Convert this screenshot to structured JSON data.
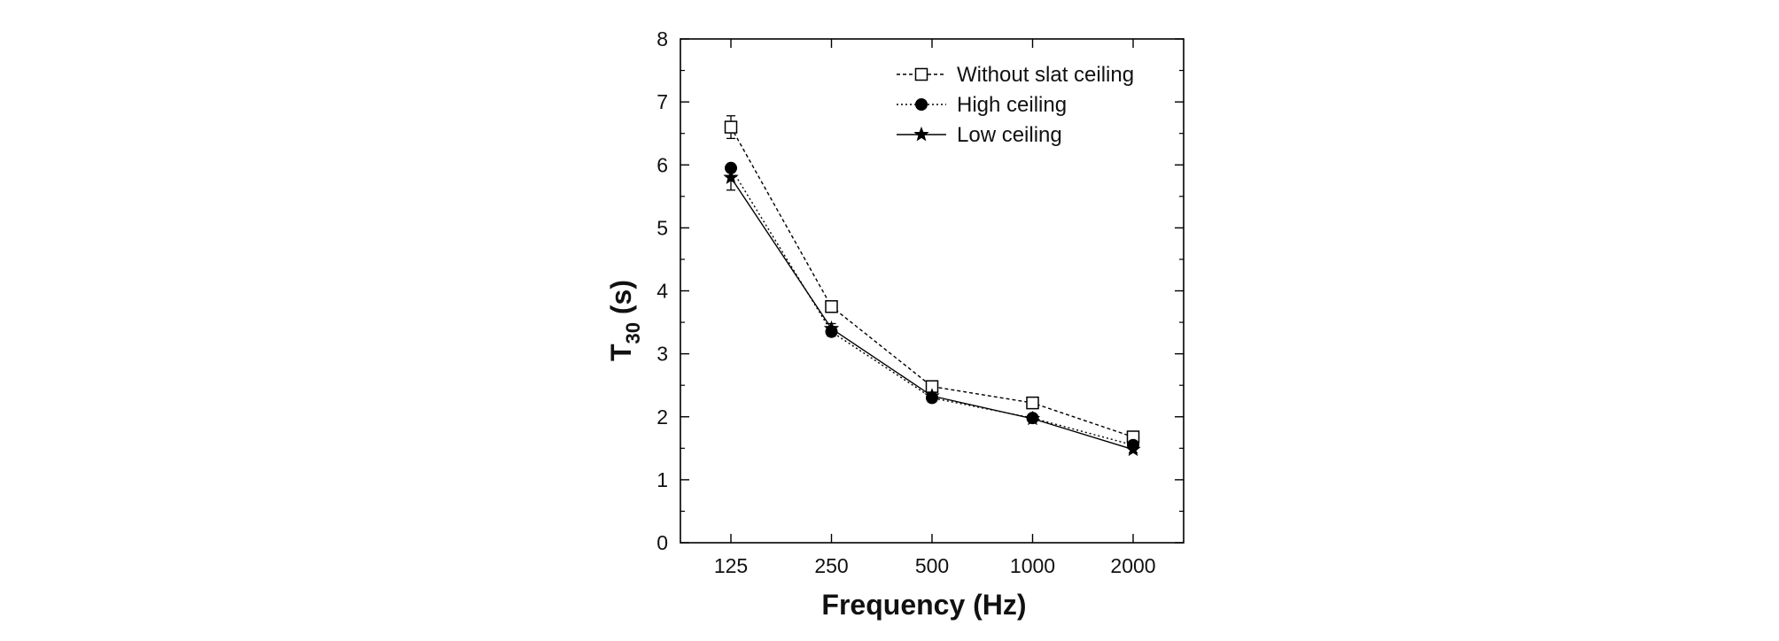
{
  "chart_data": {
    "type": "line",
    "x_axis": {
      "label": "Frequency (Hz)",
      "scale": "categorical",
      "categories": [
        "125",
        "250",
        "500",
        "1000",
        "2000"
      ]
    },
    "y_axis": {
      "label_main": "T",
      "label_sub": "30",
      "label_unit": "(s)",
      "ylim": [
        0,
        8
      ],
      "ticks": [
        "0",
        "1",
        "2",
        "3",
        "4",
        "5",
        "6",
        "7",
        "8"
      ],
      "minor_step": 0.5
    },
    "grid": false,
    "legend": {
      "placement": "top-right"
    },
    "series": [
      {
        "name": "Without slat ceiling",
        "marker": "open-square",
        "line_style": "dotted-dense",
        "color": "#000000",
        "values": [
          6.6,
          3.75,
          2.48,
          2.22,
          1.68
        ],
        "errors": [
          0.18,
          0.07,
          0.05,
          0.04,
          0.04
        ]
      },
      {
        "name": "High ceiling",
        "marker": "filled-circle",
        "line_style": "dotted",
        "color": "#000000",
        "values": [
          5.95,
          3.35,
          2.3,
          1.98,
          1.55
        ],
        "errors": [
          0.06,
          0.07,
          0.05,
          0.05,
          0.05
        ]
      },
      {
        "name": "Low ceiling",
        "marker": "filled-star",
        "line_style": "solid",
        "color": "#000000",
        "values": [
          5.8,
          3.4,
          2.33,
          1.97,
          1.48
        ],
        "errors": [
          0.2,
          0.08,
          0.06,
          0.05,
          0.05
        ]
      }
    ]
  }
}
